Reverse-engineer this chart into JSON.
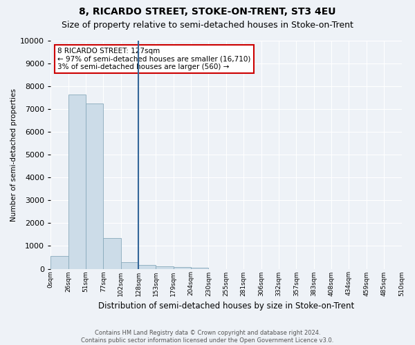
{
  "title": "8, RICARDO STREET, STOKE-ON-TRENT, ST3 4EU",
  "subtitle": "Size of property relative to semi-detached houses in Stoke-on-Trent",
  "xlabel": "Distribution of semi-detached houses by size in Stoke-on-Trent",
  "ylabel": "Number of semi-detached properties",
  "footer": "Contains HM Land Registry data © Crown copyright and database right 2024.\nContains public sector information licensed under the Open Government Licence v3.0.",
  "bin_labels": [
    "0sqm",
    "26sqm",
    "51sqm",
    "77sqm",
    "102sqm",
    "128sqm",
    "153sqm",
    "179sqm",
    "204sqm",
    "230sqm",
    "255sqm",
    "281sqm",
    "306sqm",
    "332sqm",
    "357sqm",
    "383sqm",
    "408sqm",
    "434sqm",
    "459sqm",
    "485sqm",
    "510sqm"
  ],
  "bar_values": [
    550,
    7650,
    7250,
    1350,
    300,
    175,
    100,
    75,
    50,
    0,
    0,
    0,
    0,
    0,
    0,
    0,
    0,
    0,
    0,
    0
  ],
  "bar_color": "#ccdce8",
  "bar_edge_color": "#88aabb",
  "annotation_title": "8 RICARDO STREET: 127sqm",
  "annotation_line1": "← 97% of semi-detached houses are smaller (16,710)",
  "annotation_line2": "3% of semi-detached houses are larger (560) →",
  "annotation_box_color": "#ffffff",
  "annotation_border_color": "#cc0000",
  "ylim": [
    0,
    10000
  ],
  "yticks": [
    0,
    1000,
    2000,
    3000,
    4000,
    5000,
    6000,
    7000,
    8000,
    9000,
    10000
  ],
  "bg_color": "#eef2f7",
  "plot_bg_color": "#eef2f7",
  "grid_color": "#ffffff",
  "vline_x_index": 5,
  "title_fontsize": 10,
  "subtitle_fontsize": 9
}
